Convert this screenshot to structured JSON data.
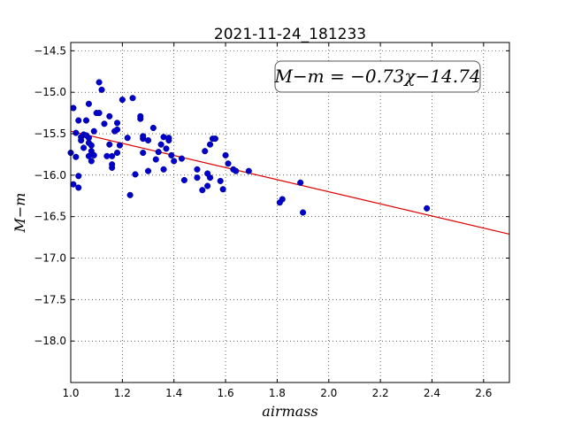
{
  "chart_data": {
    "type": "scatter",
    "title": "2021-11-24_181233",
    "xlabel": "airmass",
    "ylabel": "M−m",
    "annotation": "M−m = −0.73χ−14.74",
    "xlim": [
      1.0,
      2.7
    ],
    "ylim": [
      -18.5,
      -14.4
    ],
    "y_inverted": true,
    "grid": true,
    "x_ticks": [
      1.0,
      1.2,
      1.4,
      1.6,
      1.8,
      2.0,
      2.2,
      2.4,
      2.6
    ],
    "x_tick_labels": [
      "1.0",
      "1.2",
      "1.4",
      "1.6",
      "1.8",
      "2.0",
      "2.2",
      "2.4",
      "2.6"
    ],
    "y_ticks": [
      -14.5,
      -15.0,
      -15.5,
      -16.0,
      -16.5,
      -17.0,
      -17.5,
      -18.0
    ],
    "y_tick_labels": [
      "−14.5",
      "−15.0",
      "−15.5",
      "−16.0",
      "−16.5",
      "−17.0",
      "−17.5",
      "−18.0"
    ],
    "series": [
      {
        "kind": "scatter",
        "color": "#0000cc",
        "points": [
          [
            1.0,
            -15.73
          ],
          [
            1.01,
            -15.19
          ],
          [
            1.01,
            -16.11
          ],
          [
            1.02,
            -15.78
          ],
          [
            1.02,
            -15.49
          ],
          [
            1.03,
            -16.01
          ],
          [
            1.03,
            -15.34
          ],
          [
            1.03,
            -16.15
          ],
          [
            1.04,
            -15.54
          ],
          [
            1.04,
            -15.58
          ],
          [
            1.05,
            -15.51
          ],
          [
            1.05,
            -15.67
          ],
          [
            1.06,
            -15.34
          ],
          [
            1.06,
            -15.52
          ],
          [
            1.07,
            -15.55
          ],
          [
            1.07,
            -15.14
          ],
          [
            1.07,
            -15.61
          ],
          [
            1.07,
            -15.77
          ],
          [
            1.08,
            -15.64
          ],
          [
            1.08,
            -15.83
          ],
          [
            1.08,
            -15.71
          ],
          [
            1.09,
            -15.47
          ],
          [
            1.09,
            -15.76
          ],
          [
            1.1,
            -15.25
          ],
          [
            1.11,
            -14.88
          ],
          [
            1.11,
            -15.25
          ],
          [
            1.12,
            -14.97
          ],
          [
            1.13,
            -15.38
          ],
          [
            1.14,
            -15.77
          ],
          [
            1.15,
            -15.29
          ],
          [
            1.15,
            -15.63
          ],
          [
            1.16,
            -15.91
          ],
          [
            1.16,
            -15.87
          ],
          [
            1.16,
            -15.77
          ],
          [
            1.17,
            -15.47
          ],
          [
            1.18,
            -15.37
          ],
          [
            1.18,
            -15.45
          ],
          [
            1.18,
            -15.73
          ],
          [
            1.19,
            -15.64
          ],
          [
            1.2,
            -15.09
          ],
          [
            1.22,
            -15.55
          ],
          [
            1.23,
            -16.24
          ],
          [
            1.24,
            -15.07
          ],
          [
            1.25,
            -15.99
          ],
          [
            1.27,
            -15.32
          ],
          [
            1.27,
            -15.29
          ],
          [
            1.28,
            -15.56
          ],
          [
            1.28,
            -15.73
          ],
          [
            1.28,
            -15.53
          ],
          [
            1.3,
            -15.58
          ],
          [
            1.3,
            -15.95
          ],
          [
            1.32,
            -15.43
          ],
          [
            1.33,
            -15.81
          ],
          [
            1.34,
            -15.72
          ],
          [
            1.35,
            -15.63
          ],
          [
            1.36,
            -15.54
          ],
          [
            1.36,
            -15.93
          ],
          [
            1.37,
            -15.68
          ],
          [
            1.38,
            -15.58
          ],
          [
            1.38,
            -15.55
          ],
          [
            1.39,
            -15.76
          ],
          [
            1.4,
            -15.83
          ],
          [
            1.43,
            -15.8
          ],
          [
            1.44,
            -16.06
          ],
          [
            1.49,
            -16.03
          ],
          [
            1.49,
            -15.93
          ],
          [
            1.51,
            -16.18
          ],
          [
            1.52,
            -15.71
          ],
          [
            1.53,
            -16.13
          ],
          [
            1.53,
            -15.98
          ],
          [
            1.54,
            -15.63
          ],
          [
            1.54,
            -16.03
          ],
          [
            1.55,
            -15.56
          ],
          [
            1.56,
            -15.56
          ],
          [
            1.58,
            -16.07
          ],
          [
            1.59,
            -16.17
          ],
          [
            1.6,
            -15.76
          ],
          [
            1.61,
            -15.86
          ],
          [
            1.63,
            -15.93
          ],
          [
            1.64,
            -15.95
          ],
          [
            1.69,
            -15.95
          ],
          [
            1.81,
            -16.33
          ],
          [
            1.82,
            -16.29
          ],
          [
            1.89,
            -16.09
          ],
          [
            1.9,
            -16.45
          ],
          [
            2.38,
            -16.4
          ]
        ]
      },
      {
        "kind": "line",
        "color": "#dd0000",
        "slope": -0.73,
        "intercept": -14.74,
        "x": [
          1.0,
          2.7
        ]
      }
    ]
  }
}
